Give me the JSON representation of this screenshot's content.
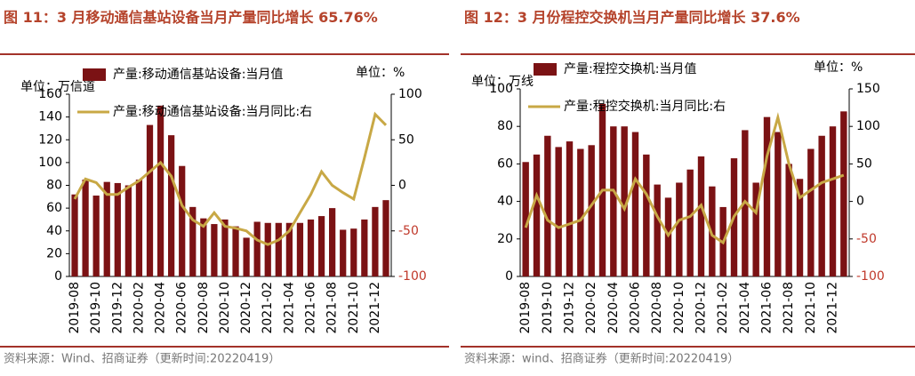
{
  "chart_data": [
    {
      "type": "bar_line",
      "title": "图 11：3 月移动通信基站设备当月产量同比增长 65.76%",
      "left_unit": "单位：万信道",
      "right_unit": "单位：%",
      "categories": [
        "2019-08",
        null,
        "2019-10",
        null,
        "2019-12",
        null,
        "2020-02",
        null,
        "2020-04",
        null,
        "2020-06",
        null,
        "2020-08",
        null,
        "2020-10",
        null,
        "2020-12",
        null,
        "2021-02",
        null,
        "2021-04",
        null,
        "2021-06",
        null,
        "2021-08",
        null,
        "2021-10",
        null,
        "2021-12",
        null
      ],
      "series": [
        {
          "name": "产量:移动通信基站设备:当月值",
          "type": "bar",
          "color": "#7b1214",
          "values": [
            72,
            85,
            71,
            83,
            82,
            80,
            85,
            133,
            150,
            124,
            97,
            61,
            51,
            46,
            50,
            44,
            34,
            48,
            47,
            47,
            47,
            47,
            50,
            53,
            60,
            41,
            42,
            50,
            61,
            67
          ]
        },
        {
          "name": "产量:移动通信基站设备:当月同比:右",
          "type": "line",
          "axis": "y2",
          "color": "#c8a845",
          "values": [
            -15,
            7,
            3,
            -10,
            -10,
            -2,
            5,
            15,
            25,
            10,
            -22,
            -38,
            -45,
            -30,
            -45,
            -47,
            -50,
            -60,
            -65,
            -60,
            -50,
            -30,
            -10,
            15,
            0,
            -8,
            -15,
            30,
            78,
            66
          ]
        }
      ],
      "ylim": [
        0,
        160
      ],
      "yticks": [
        0,
        20,
        40,
        60,
        80,
        100,
        120,
        140,
        160
      ],
      "y2lim": [
        -100,
        100
      ],
      "y2ticks": [
        -100,
        -50,
        0,
        50,
        100
      ]
    },
    {
      "type": "bar_line",
      "title": "图 12：3 月份程控交换机当月产量同比增长 37.6%",
      "left_unit": "单位：万线",
      "right_unit": "单位：%",
      "categories": [
        "2019-08",
        null,
        "2019-10",
        null,
        "2019-12",
        null,
        "2020-02",
        null,
        "2020-04",
        null,
        "2020-06",
        null,
        "2020-08",
        null,
        "2020-10",
        null,
        "2020-12",
        null,
        "2021-02",
        null,
        "2021-04",
        null,
        "2021-06",
        null,
        "2021-08",
        null,
        "2021-10",
        null,
        "2021-12",
        null
      ],
      "series": [
        {
          "name": "产量:程控交换机:当月值",
          "type": "bar",
          "color": "#7b1214",
          "values": [
            61,
            65,
            75,
            69,
            72,
            68,
            70,
            92,
            80,
            80,
            77,
            65,
            49,
            42,
            50,
            57,
            64,
            48,
            37,
            63,
            78,
            50,
            85,
            77,
            60,
            52,
            68,
            75,
            80,
            88
          ]
        },
        {
          "name": "产量:程控交换机:当月同比:右",
          "type": "line",
          "axis": "y2",
          "color": "#c8a845",
          "values": [
            -35,
            8,
            -25,
            -35,
            -30,
            -25,
            -5,
            15,
            15,
            -10,
            30,
            10,
            -20,
            -45,
            -25,
            -20,
            -5,
            -45,
            -55,
            -20,
            0,
            -15,
            60,
            112,
            50,
            5,
            15,
            25,
            30,
            35
          ]
        }
      ],
      "ylim": [
        0,
        100
      ],
      "yticks": [
        0,
        20,
        40,
        60,
        80,
        100
      ],
      "y2lim": [
        -100,
        150
      ],
      "y2ticks": [
        -100,
        -50,
        0,
        50,
        100,
        150
      ]
    }
  ],
  "source_left": "资料来源：Wind、招商证券（更新时间:20220419）",
  "source_right": "资料来源：wind、招商证券（更新时间:20220419）"
}
